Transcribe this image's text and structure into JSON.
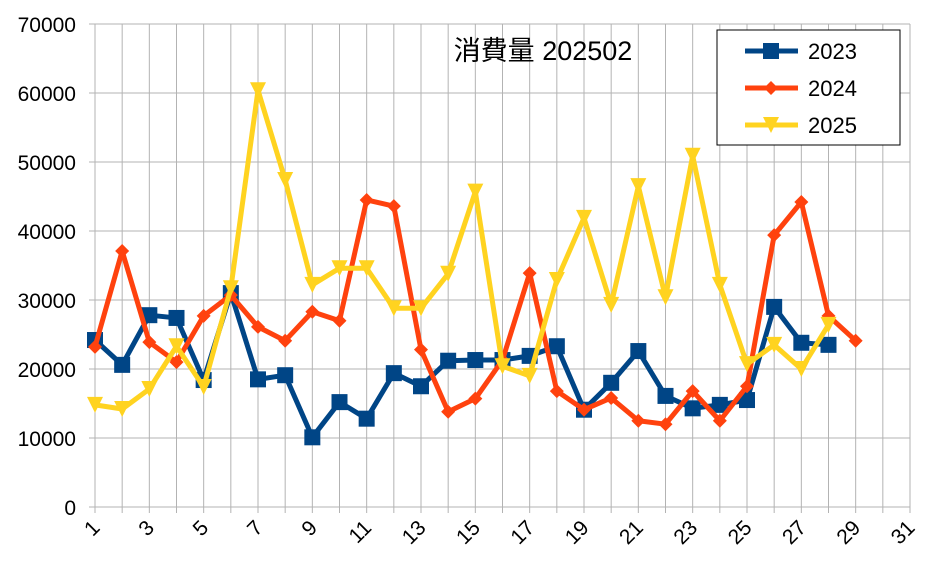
{
  "chart_data": {
    "type": "line",
    "title": "消費量 202502",
    "xlabel": "",
    "ylabel": "",
    "xlim": [
      1,
      31
    ],
    "ylim": [
      0,
      70000
    ],
    "x_ticks": [
      "1",
      "3",
      "5",
      "7",
      "9",
      "11",
      "13",
      "15",
      "17",
      "19",
      "21",
      "23",
      "25",
      "27",
      "29",
      "31"
    ],
    "y_ticks": [
      "0",
      "10000",
      "20000",
      "30000",
      "40000",
      "50000",
      "60000",
      "70000"
    ],
    "grid": true,
    "legend_position": "top-right",
    "series": [
      {
        "name": "2023",
        "color": "#004586",
        "marker": "square",
        "values": [
          24200,
          20600,
          27800,
          27400,
          18400,
          31000,
          18500,
          19100,
          10100,
          15200,
          12800,
          19400,
          17500,
          21200,
          21300,
          21300,
          21900,
          23300,
          14100,
          18000,
          22600,
          16100,
          14300,
          14800,
          15500,
          29000,
          23800,
          23500
        ]
      },
      {
        "name": "2024",
        "color": "#ff420e",
        "marker": "diamond",
        "values": [
          23200,
          37100,
          23900,
          21000,
          27700,
          30700,
          26100,
          24100,
          28300,
          27000,
          44500,
          43600,
          22800,
          13800,
          15700,
          21300,
          33900,
          16800,
          14100,
          15800,
          12500,
          12000,
          16800,
          12500,
          17500,
          39400,
          44200,
          27700,
          24100
        ]
      },
      {
        "name": "2025",
        "color": "#ffd320",
        "marker": "triangle-down",
        "values": [
          14800,
          14200,
          17100,
          23300,
          17400,
          31700,
          60400,
          47400,
          32200,
          34600,
          34600,
          28800,
          28800,
          33800,
          45700,
          20400,
          19000,
          32900,
          41900,
          29300,
          46500,
          30400,
          50900,
          32200,
          20700,
          23500,
          20000,
          26400
        ]
      }
    ]
  }
}
